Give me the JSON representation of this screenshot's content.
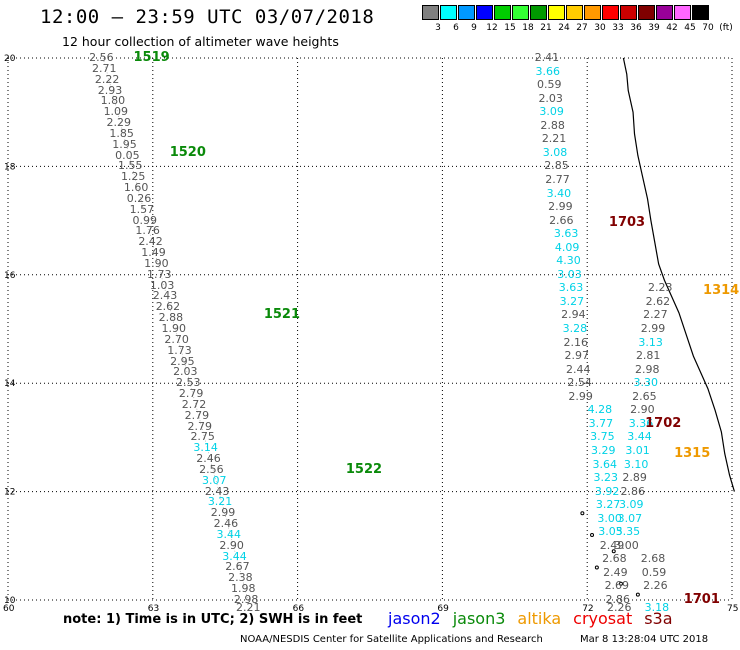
{
  "header": {
    "title": "12:00 — 23:59 UTC 03/07/2018",
    "subtitle": "12 hour collection of altimeter wave heights"
  },
  "legend": {
    "colors": [
      "#808080",
      "#00ffff",
      "#0099ff",
      "#0000ff",
      "#00cc00",
      "#33ff33",
      "#009900",
      "#ffff00",
      "#ffcc00",
      "#ff9900",
      "#ff0000",
      "#cc0000",
      "#800000",
      "#990099",
      "#ff66ff",
      "#000000"
    ],
    "labels": [
      "3",
      "6",
      "9",
      "12",
      "15",
      "18",
      "21",
      "24",
      "27",
      "30",
      "33",
      "36",
      "39",
      "42",
      "45",
      "70"
    ],
    "unit": "(ft)"
  },
  "axes": {
    "lat_ticks": [
      "20",
      "18",
      "16",
      "14",
      "12",
      "10"
    ],
    "lon_ticks": [
      "60",
      "63",
      "66",
      "69",
      "72",
      "75"
    ]
  },
  "colors": {
    "gray": "#555555",
    "cyan": "#00d2e6",
    "green": "#0a8a0a",
    "maroon": "#800000",
    "orange": "#ee9900",
    "blue": "#0000ee"
  },
  "passes": [
    {
      "id": "1519",
      "satellite": "jason3",
      "color": "#0a8a0a",
      "track": [
        [
          61.97,
          20
        ],
        [
          64.97,
          10
        ]
      ],
      "values": [
        {
          "lat": 20.0,
          "v": "2.56",
          "c": "gray"
        },
        {
          "lat": 19.8,
          "v": "2.71",
          "c": "gray"
        },
        {
          "lat": 19.6,
          "v": "2.22",
          "c": "gray"
        },
        {
          "lat": 19.4,
          "v": "2.93",
          "c": "gray"
        },
        {
          "lat": 19.2,
          "v": "1.80",
          "c": "gray"
        },
        {
          "lat": 19.0,
          "v": "1.09",
          "c": "gray"
        },
        {
          "lat": 18.8,
          "v": "2.29",
          "c": "gray"
        },
        {
          "lat": 18.6,
          "v": "1.85",
          "c": "gray"
        },
        {
          "lat": 18.4,
          "v": "1.95",
          "c": "gray"
        },
        {
          "lat": 18.2,
          "v": "0.05",
          "c": "gray"
        },
        {
          "lat": 18.0,
          "v": "1.55",
          "c": "gray"
        },
        {
          "lat": 17.8,
          "v": "1.25",
          "c": "gray"
        },
        {
          "lat": 17.6,
          "v": "1.60",
          "c": "gray"
        },
        {
          "lat": 17.4,
          "v": "0.26",
          "c": "gray"
        },
        {
          "lat": 17.2,
          "v": "1.57",
          "c": "gray"
        },
        {
          "lat": 17.0,
          "v": "0.99",
          "c": "gray"
        },
        {
          "lat": 16.8,
          "v": "1.76",
          "c": "gray"
        },
        {
          "lat": 16.6,
          "v": "2.42",
          "c": "gray"
        },
        {
          "lat": 16.4,
          "v": "1.49",
          "c": "gray"
        },
        {
          "lat": 16.2,
          "v": "1.90",
          "c": "gray"
        },
        {
          "lat": 16.0,
          "v": "1.73",
          "c": "gray"
        },
        {
          "lat": 15.8,
          "v": "1.03",
          "c": "gray"
        },
        {
          "lat": 15.6,
          "v": "2.43",
          "c": "gray"
        },
        {
          "lat": 15.4,
          "v": "2.62",
          "c": "gray"
        },
        {
          "lat": 15.2,
          "v": "2.88",
          "c": "gray"
        },
        {
          "lat": 15.0,
          "v": "1.90",
          "c": "gray"
        },
        {
          "lat": 14.8,
          "v": "2.70",
          "c": "gray"
        },
        {
          "lat": 14.6,
          "v": "1.73",
          "c": "gray"
        },
        {
          "lat": 14.4,
          "v": "2.95",
          "c": "gray"
        },
        {
          "lat": 14.2,
          "v": "2.03",
          "c": "gray"
        },
        {
          "lat": 14.0,
          "v": "2.53",
          "c": "gray"
        },
        {
          "lat": 13.8,
          "v": "2.79",
          "c": "gray"
        },
        {
          "lat": 13.6,
          "v": "2.72",
          "c": "gray"
        },
        {
          "lat": 13.4,
          "v": "2.79",
          "c": "gray"
        },
        {
          "lat": 13.2,
          "v": "2.79",
          "c": "gray"
        },
        {
          "lat": 13.0,
          "v": "2.75",
          "c": "gray"
        },
        {
          "lat": 12.8,
          "v": "3.14",
          "c": "cyan"
        },
        {
          "lat": 12.6,
          "v": "2.46",
          "c": "gray"
        },
        {
          "lat": 12.4,
          "v": "2.56",
          "c": "gray"
        },
        {
          "lat": 12.2,
          "v": "3.07",
          "c": "cyan"
        },
        {
          "lat": 12.0,
          "v": "2.43",
          "c": "gray"
        },
        {
          "lat": 11.8,
          "v": "3.21",
          "c": "cyan"
        },
        {
          "lat": 11.6,
          "v": "2.99",
          "c": "gray"
        },
        {
          "lat": 11.4,
          "v": "2.46",
          "c": "gray"
        },
        {
          "lat": 11.2,
          "v": "3.44",
          "c": "cyan"
        },
        {
          "lat": 11.0,
          "v": "2.90",
          "c": "gray"
        },
        {
          "lat": 10.8,
          "v": "3.44",
          "c": "cyan"
        },
        {
          "lat": 10.6,
          "v": "2.67",
          "c": "gray"
        },
        {
          "lat": 10.4,
          "v": "2.38",
          "c": "gray"
        },
        {
          "lat": 10.2,
          "v": "1.98",
          "c": "gray"
        },
        {
          "lat": 10.0,
          "v": "2.98",
          "c": "gray"
        },
        {
          "lat": 9.85,
          "v": "2.21",
          "c": "gray"
        }
      ],
      "segment_labels": [
        {
          "text": "1519",
          "lat": 20.0,
          "lon": 62.6
        },
        {
          "text": "1520",
          "lat": 18.25,
          "lon": 63.35
        },
        {
          "text": "1521",
          "lat": 15.25,
          "lon": 65.3
        },
        {
          "text": "1522",
          "lat": 12.4,
          "lon": 67.0
        }
      ]
    }
  ],
  "pass_labels": [
    {
      "text": "1703",
      "color": "#800000",
      "lat": 16.95,
      "lon": 72.45
    },
    {
      "text": "1314",
      "color": "#ee9900",
      "lat": 15.7,
      "lon": 74.4
    },
    {
      "text": "1702",
      "color": "#800000",
      "lat": 13.25,
      "lon": 73.2
    },
    {
      "text": "1315",
      "color": "#ee9900",
      "lat": 12.7,
      "lon": 73.8
    },
    {
      "text": "1701",
      "color": "#800000",
      "lat": 10.0,
      "lon": 74.0
    }
  ],
  "ocean_values": [
    {
      "lat": 20.0,
      "lon": 71.2,
      "v": "2.41",
      "c": "gray"
    },
    {
      "lat": 19.75,
      "lon": 71.22,
      "v": "3.66",
      "c": "cyan"
    },
    {
      "lat": 19.5,
      "lon": 71.25,
      "v": "0.59",
      "c": "gray"
    },
    {
      "lat": 19.25,
      "lon": 71.28,
      "v": "2.03",
      "c": "gray"
    },
    {
      "lat": 19.0,
      "lon": 71.3,
      "v": "3.09",
      "c": "cyan"
    },
    {
      "lat": 18.75,
      "lon": 71.32,
      "v": "2.88",
      "c": "gray"
    },
    {
      "lat": 18.5,
      "lon": 71.35,
      "v": "2.21",
      "c": "gray"
    },
    {
      "lat": 18.25,
      "lon": 71.37,
      "v": "3.08",
      "c": "cyan"
    },
    {
      "lat": 18.0,
      "lon": 71.4,
      "v": "2.85",
      "c": "gray"
    },
    {
      "lat": 17.75,
      "lon": 71.42,
      "v": "2.77",
      "c": "gray"
    },
    {
      "lat": 17.5,
      "lon": 71.45,
      "v": "3.40",
      "c": "cyan"
    },
    {
      "lat": 17.25,
      "lon": 71.48,
      "v": "2.99",
      "c": "gray"
    },
    {
      "lat": 17.0,
      "lon": 71.5,
      "v": "2.66",
      "c": "gray"
    },
    {
      "lat": 16.75,
      "lon": 71.6,
      "v": "3.63",
      "c": "cyan"
    },
    {
      "lat": 16.5,
      "lon": 71.62,
      "v": "4.09",
      "c": "cyan"
    },
    {
      "lat": 16.25,
      "lon": 71.65,
      "v": "4.30",
      "c": "cyan"
    },
    {
      "lat": 16.0,
      "lon": 71.67,
      "v": "3.03",
      "c": "cyan"
    },
    {
      "lat": 15.75,
      "lon": 71.7,
      "v": "3.63",
      "c": "cyan"
    },
    {
      "lat": 15.5,
      "lon": 71.72,
      "v": "3.27",
      "c": "cyan"
    },
    {
      "lat": 15.25,
      "lon": 71.75,
      "v": "2.94",
      "c": "gray"
    },
    {
      "lat": 15.0,
      "lon": 71.78,
      "v": "3.28",
      "c": "cyan"
    },
    {
      "lat": 14.75,
      "lon": 71.8,
      "v": "2.16",
      "c": "gray"
    },
    {
      "lat": 14.5,
      "lon": 71.82,
      "v": "2.97",
      "c": "gray"
    },
    {
      "lat": 14.25,
      "lon": 71.85,
      "v": "2.44",
      "c": "gray"
    },
    {
      "lat": 14.0,
      "lon": 71.88,
      "v": "2.54",
      "c": "gray"
    },
    {
      "lat": 13.75,
      "lon": 71.9,
      "v": "2.99",
      "c": "gray"
    },
    {
      "lat": 13.5,
      "lon": 72.3,
      "v": "4.28",
      "c": "cyan"
    },
    {
      "lat": 13.25,
      "lon": 72.32,
      "v": "3.77",
      "c": "cyan"
    },
    {
      "lat": 13.0,
      "lon": 72.35,
      "v": "3.75",
      "c": "cyan"
    },
    {
      "lat": 12.75,
      "lon": 72.37,
      "v": "3.29",
      "c": "cyan"
    },
    {
      "lat": 12.5,
      "lon": 72.4,
      "v": "3.64",
      "c": "cyan"
    },
    {
      "lat": 12.25,
      "lon": 72.42,
      "v": "3.23",
      "c": "cyan"
    },
    {
      "lat": 12.0,
      "lon": 72.45,
      "v": "3.92",
      "c": "cyan"
    },
    {
      "lat": 11.75,
      "lon": 72.47,
      "v": "3.27",
      "c": "cyan"
    },
    {
      "lat": 11.5,
      "lon": 72.5,
      "v": "3.00",
      "c": "cyan"
    },
    {
      "lat": 11.25,
      "lon": 72.52,
      "v": "3.05",
      "c": "cyan"
    },
    {
      "lat": 11.0,
      "lon": 72.55,
      "v": "2.49",
      "c": "gray"
    },
    {
      "lat": 10.75,
      "lon": 72.6,
      "v": "2.68",
      "c": "gray"
    },
    {
      "lat": 10.5,
      "lon": 72.62,
      "v": "2.49",
      "c": "gray"
    },
    {
      "lat": 10.25,
      "lon": 72.65,
      "v": "2.69",
      "c": "gray"
    },
    {
      "lat": 10.0,
      "lon": 72.67,
      "v": "2.86",
      "c": "gray"
    },
    {
      "lat": 9.85,
      "lon": 72.7,
      "v": "2.26",
      "c": "gray"
    },
    {
      "lat": 15.75,
      "lon": 73.55,
      "v": "2.23",
      "c": "gray"
    },
    {
      "lat": 15.5,
      "lon": 73.5,
      "v": "2.62",
      "c": "gray"
    },
    {
      "lat": 15.25,
      "lon": 73.45,
      "v": "2.27",
      "c": "gray"
    },
    {
      "lat": 15.0,
      "lon": 73.4,
      "v": "2.99",
      "c": "gray"
    },
    {
      "lat": 14.75,
      "lon": 73.35,
      "v": "3.13",
      "c": "cyan"
    },
    {
      "lat": 14.5,
      "lon": 73.3,
      "v": "2.81",
      "c": "gray"
    },
    {
      "lat": 14.25,
      "lon": 73.28,
      "v": "2.98",
      "c": "gray"
    },
    {
      "lat": 14.0,
      "lon": 73.25,
      "v": "3.30",
      "c": "cyan"
    },
    {
      "lat": 13.75,
      "lon": 73.22,
      "v": "2.65",
      "c": "gray"
    },
    {
      "lat": 13.5,
      "lon": 73.18,
      "v": "2.90",
      "c": "gray"
    },
    {
      "lat": 13.25,
      "lon": 73.15,
      "v": "3.36",
      "c": "cyan"
    },
    {
      "lat": 13.0,
      "lon": 73.12,
      "v": "3.44",
      "c": "cyan"
    },
    {
      "lat": 12.75,
      "lon": 73.08,
      "v": "3.01",
      "c": "cyan"
    },
    {
      "lat": 12.5,
      "lon": 73.05,
      "v": "3.10",
      "c": "cyan"
    },
    {
      "lat": 12.25,
      "lon": 73.02,
      "v": "2.89",
      "c": "gray"
    },
    {
      "lat": 12.0,
      "lon": 72.98,
      "v": "2.86",
      "c": "gray"
    },
    {
      "lat": 11.75,
      "lon": 72.95,
      "v": "3.09",
      "c": "cyan"
    },
    {
      "lat": 11.5,
      "lon": 72.92,
      "v": "3.07",
      "c": "cyan"
    },
    {
      "lat": 11.25,
      "lon": 72.88,
      "v": "3.35",
      "c": "cyan"
    },
    {
      "lat": 11.0,
      "lon": 72.85,
      "v": "3.00",
      "c": "gray"
    },
    {
      "lat": 10.75,
      "lon": 73.4,
      "v": "2.68",
      "c": "gray"
    },
    {
      "lat": 10.5,
      "lon": 73.42,
      "v": "0.59",
      "c": "gray"
    },
    {
      "lat": 10.25,
      "lon": 73.45,
      "v": "2.26",
      "c": "gray"
    },
    {
      "lat": 9.85,
      "lon": 73.48,
      "v": "3.18",
      "c": "cyan"
    }
  ],
  "footer": {
    "note": "note: 1) Time is in UTC; 2) SWH is in feet",
    "satellites": [
      {
        "name": "jason2",
        "color": "#0000ee"
      },
      {
        "name": "jason3",
        "color": "#0a8a0a"
      },
      {
        "name": "altika",
        "color": "#ee9900"
      },
      {
        "name": "cryosat",
        "color": "#ee0000"
      },
      {
        "name": "s3a",
        "color": "#800000"
      }
    ],
    "credit": "NOAA/NESDIS Center for Satellite Applications and Research",
    "timestamp": "Mar  8 13:28:04 UTC 2018"
  }
}
